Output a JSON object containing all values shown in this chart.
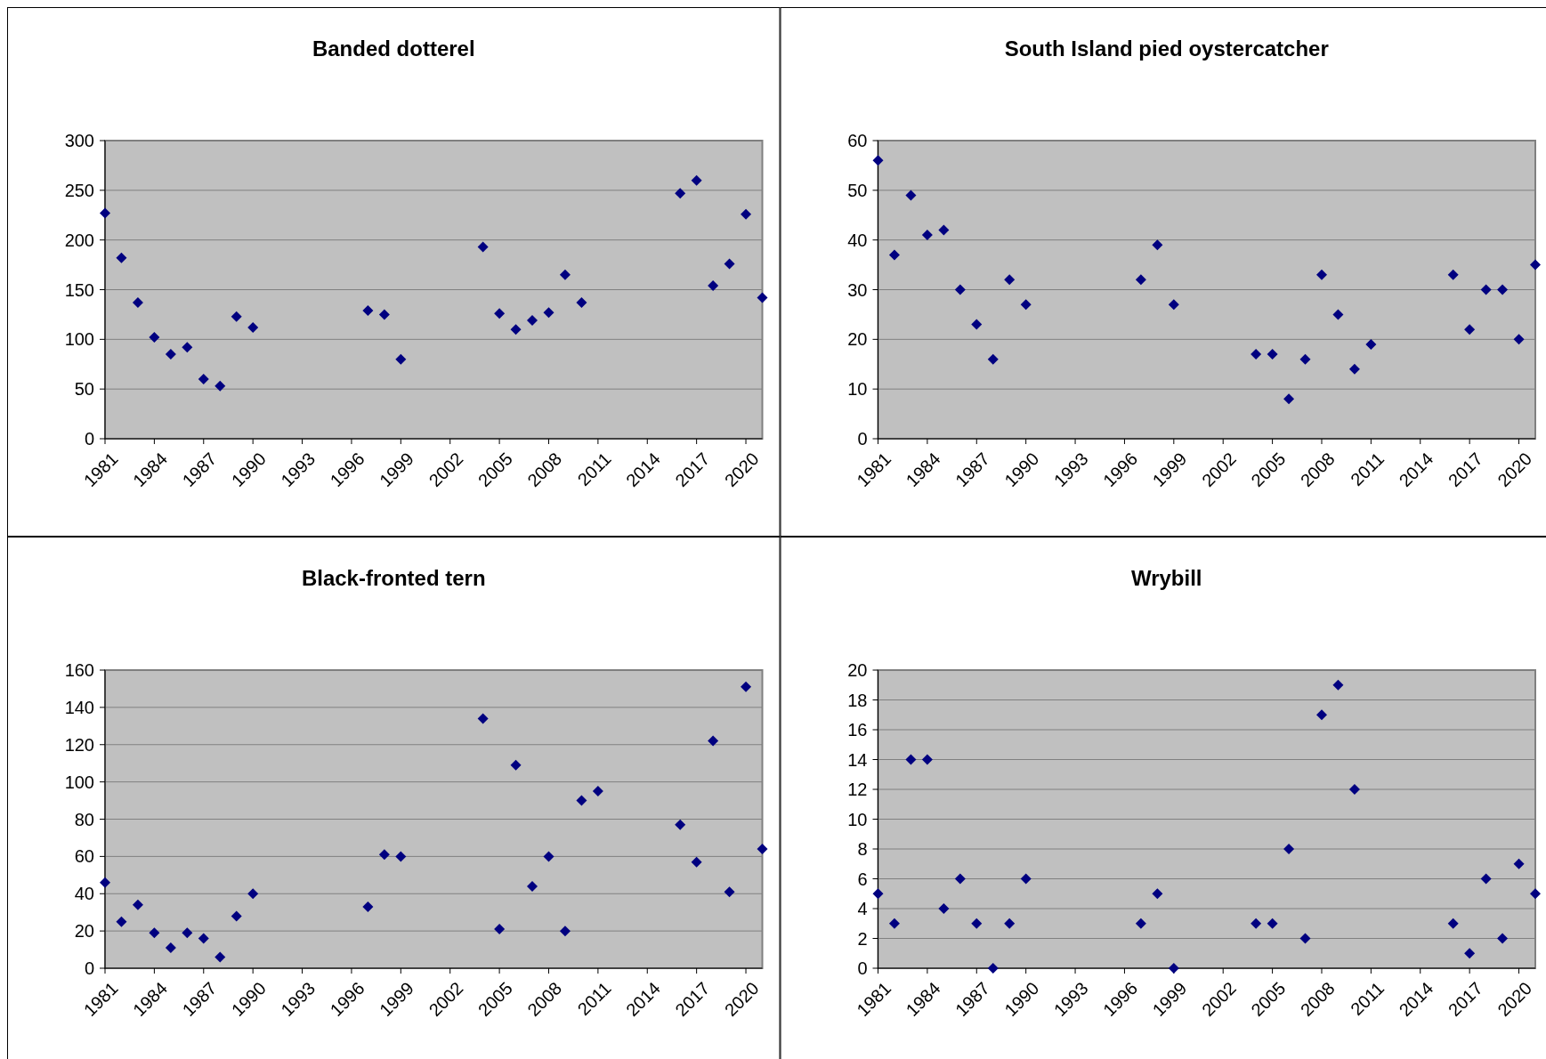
{
  "chart_data": [
    {
      "type": "scatter",
      "title": "Banded dotterel",
      "x": [
        1981,
        1982,
        1983,
        1984,
        1985,
        1986,
        1987,
        1988,
        1989,
        1990,
        1997,
        1998,
        1999,
        2004,
        2005,
        2006,
        2007,
        2008,
        2009,
        2010,
        2016,
        2017,
        2018,
        2019,
        2020,
        2021
      ],
      "series": [
        {
          "color": "#000080",
          "values": [
            227,
            182,
            137,
            102,
            85,
            92,
            60,
            53,
            123,
            112,
            129,
            125,
            80,
            193,
            126,
            110,
            119,
            127,
            165,
            137,
            247,
            260,
            154,
            176,
            226,
            142
          ]
        }
      ],
      "xlim": [
        1981,
        2021
      ],
      "xticks": [
        1981,
        1984,
        1987,
        1990,
        1993,
        1996,
        1999,
        2002,
        2005,
        2008,
        2011,
        2014,
        2017,
        2020
      ],
      "ylim": [
        0,
        300
      ],
      "yticks": [
        0,
        50,
        100,
        150,
        200,
        250,
        300
      ],
      "grid": "y",
      "marker": "diamond"
    },
    {
      "type": "scatter",
      "title": "South Island pied oystercatcher",
      "x": [
        1981,
        1982,
        1983,
        1984,
        1985,
        1986,
        1987,
        1988,
        1989,
        1990,
        1997,
        1998,
        1999,
        2004,
        2005,
        2006,
        2007,
        2008,
        2009,
        2010,
        2011,
        2016,
        2017,
        2018,
        2019,
        2020,
        2021
      ],
      "series": [
        {
          "color": "#000080",
          "values": [
            56,
            37,
            49,
            41,
            42,
            30,
            23,
            16,
            32,
            27,
            32,
            39,
            27,
            17,
            17,
            8,
            16,
            33,
            25,
            14,
            19,
            33,
            22,
            30,
            30,
            20,
            35
          ]
        }
      ],
      "xlim": [
        1981,
        2021
      ],
      "xticks": [
        1981,
        1984,
        1987,
        1990,
        1993,
        1996,
        1999,
        2002,
        2005,
        2008,
        2011,
        2014,
        2017,
        2020
      ],
      "ylim": [
        0,
        60
      ],
      "yticks": [
        0,
        10,
        20,
        30,
        40,
        50,
        60
      ],
      "grid": "y",
      "marker": "diamond"
    },
    {
      "type": "scatter",
      "title": "Black-fronted tern",
      "x": [
        1981,
        1982,
        1983,
        1984,
        1985,
        1986,
        1987,
        1988,
        1989,
        1990,
        1997,
        1998,
        1999,
        2004,
        2005,
        2006,
        2007,
        2008,
        2009,
        2010,
        2011,
        2016,
        2017,
        2018,
        2019,
        2020,
        2021
      ],
      "series": [
        {
          "color": "#000080",
          "values": [
            46,
            25,
            34,
            19,
            11,
            19,
            16,
            6,
            28,
            40,
            33,
            61,
            60,
            134,
            21,
            109,
            44,
            60,
            20,
            90,
            95,
            77,
            57,
            122,
            41,
            151,
            64
          ]
        }
      ],
      "xlim": [
        1981,
        2021
      ],
      "xticks": [
        1981,
        1984,
        1987,
        1990,
        1993,
        1996,
        1999,
        2002,
        2005,
        2008,
        2011,
        2014,
        2017,
        2020
      ],
      "ylim": [
        0,
        160
      ],
      "yticks": [
        0,
        20,
        40,
        60,
        80,
        100,
        120,
        140,
        160
      ],
      "grid": "y",
      "marker": "diamond"
    },
    {
      "type": "scatter",
      "title": "Wrybill",
      "x": [
        1981,
        1982,
        1983,
        1984,
        1985,
        1986,
        1987,
        1988,
        1989,
        1990,
        1997,
        1998,
        1999,
        2004,
        2005,
        2006,
        2007,
        2008,
        2009,
        2010,
        2016,
        2017,
        2018,
        2019,
        2020,
        2021
      ],
      "series": [
        {
          "color": "#000080",
          "values": [
            5,
            3,
            14,
            14,
            4,
            6,
            3,
            0,
            3,
            6,
            3,
            5,
            0,
            3,
            3,
            8,
            2,
            17,
            19,
            12,
            3,
            1,
            6,
            2,
            7,
            5
          ]
        }
      ],
      "xlim": [
        1981,
        2021
      ],
      "xticks": [
        1981,
        1984,
        1987,
        1990,
        1993,
        1996,
        1999,
        2002,
        2005,
        2008,
        2011,
        2014,
        2017,
        2020
      ],
      "ylim": [
        0,
        20
      ],
      "yticks": [
        0,
        2,
        4,
        6,
        8,
        10,
        12,
        14,
        16,
        18,
        20
      ],
      "grid": "y",
      "marker": "diamond"
    }
  ]
}
